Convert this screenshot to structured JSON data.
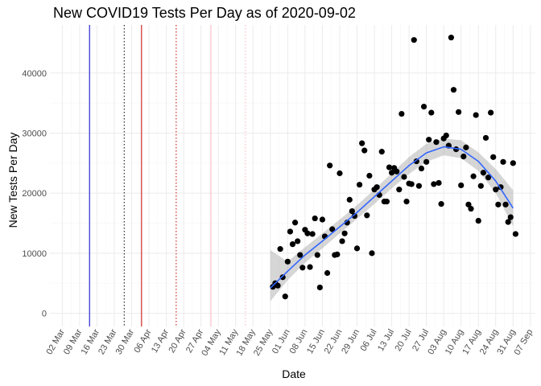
{
  "chart_data": {
    "type": "scatter",
    "title": "New COVID19 Tests Per Day as of 2020-09-02",
    "xlabel": "Date",
    "ylabel": "New Tests Per Day",
    "xlim": [
      "2020-02-26",
      "2020-09-09"
    ],
    "ylim": [
      -2200,
      48000
    ],
    "grid": true,
    "x_ticks": [
      "2020-03-02",
      "2020-03-09",
      "2020-03-16",
      "2020-03-23",
      "2020-03-30",
      "2020-04-06",
      "2020-04-13",
      "2020-04-20",
      "2020-04-27",
      "2020-05-04",
      "2020-05-11",
      "2020-05-18",
      "2020-05-25",
      "2020-06-01",
      "2020-06-08",
      "2020-06-15",
      "2020-06-22",
      "2020-06-29",
      "2020-07-06",
      "2020-07-13",
      "2020-07-20",
      "2020-07-27",
      "2020-08-03",
      "2020-08-10",
      "2020-08-17",
      "2020-08-24",
      "2020-08-31",
      "2020-09-07"
    ],
    "x_tick_labels": [
      "02 Mar",
      "09 Mar",
      "16 Mar",
      "23 Mar",
      "30 Mar",
      "06 Apr",
      "13 Apr",
      "20 Apr",
      "27 Apr",
      "04 May",
      "11 May",
      "18 May",
      "25 May",
      "01 Jun",
      "08 Jun",
      "15 Jun",
      "22 Jun",
      "29 Jun",
      "06 Jul",
      "13 Jul",
      "20 Jul",
      "27 Jul",
      "03 Aug",
      "10 Aug",
      "17 Aug",
      "24 Aug",
      "31 Aug",
      "07 Sep"
    ],
    "y_ticks": [
      0,
      10000,
      20000,
      30000,
      40000
    ],
    "y_tick_labels": [
      "0",
      "10000",
      "20000",
      "30000",
      "40000"
    ],
    "reference_lines": [
      {
        "date": "2020-03-13",
        "color": "#0000cc",
        "style": "solid"
      },
      {
        "date": "2020-03-27",
        "color": "#000000",
        "style": "dotted"
      },
      {
        "date": "2020-04-03",
        "color": "#cc0000",
        "style": "solid"
      },
      {
        "date": "2020-04-17",
        "color": "#cc0000",
        "style": "dotted"
      },
      {
        "date": "2020-05-01",
        "color": "#ffb6c1",
        "style": "solid"
      },
      {
        "date": "2020-05-15",
        "color": "#ffb6c1",
        "style": "dotted"
      }
    ],
    "points": [
      {
        "x": "2020-05-26",
        "y": 4400
      },
      {
        "x": "2020-05-27",
        "y": 5000
      },
      {
        "x": "2020-05-28",
        "y": 4600
      },
      {
        "x": "2020-05-29",
        "y": 10700
      },
      {
        "x": "2020-05-30",
        "y": 6000
      },
      {
        "x": "2020-05-31",
        "y": 2800
      },
      {
        "x": "2020-06-01",
        "y": 8600
      },
      {
        "x": "2020-06-02",
        "y": 13600
      },
      {
        "x": "2020-06-03",
        "y": 11500
      },
      {
        "x": "2020-06-04",
        "y": 15100
      },
      {
        "x": "2020-06-05",
        "y": 12000
      },
      {
        "x": "2020-06-06",
        "y": 9700
      },
      {
        "x": "2020-06-07",
        "y": 7600
      },
      {
        "x": "2020-06-08",
        "y": 13900
      },
      {
        "x": "2020-06-09",
        "y": 13300
      },
      {
        "x": "2020-06-10",
        "y": 7700
      },
      {
        "x": "2020-06-11",
        "y": 13200
      },
      {
        "x": "2020-06-12",
        "y": 15800
      },
      {
        "x": "2020-06-13",
        "y": 9700
      },
      {
        "x": "2020-06-14",
        "y": 4300
      },
      {
        "x": "2020-06-15",
        "y": 15600
      },
      {
        "x": "2020-06-16",
        "y": 12800
      },
      {
        "x": "2020-06-17",
        "y": 6700
      },
      {
        "x": "2020-06-18",
        "y": 24600
      },
      {
        "x": "2020-06-19",
        "y": 14000
      },
      {
        "x": "2020-06-20",
        "y": 9700
      },
      {
        "x": "2020-06-21",
        "y": 9800
      },
      {
        "x": "2020-06-22",
        "y": 23300
      },
      {
        "x": "2020-06-23",
        "y": 12000
      },
      {
        "x": "2020-06-24",
        "y": 13300
      },
      {
        "x": "2020-06-25",
        "y": 15100
      },
      {
        "x": "2020-06-26",
        "y": 18900
      },
      {
        "x": "2020-06-27",
        "y": 17000
      },
      {
        "x": "2020-06-28",
        "y": 16200
      },
      {
        "x": "2020-06-29",
        "y": 10800
      },
      {
        "x": "2020-06-30",
        "y": 21400
      },
      {
        "x": "2020-07-01",
        "y": 28300
      },
      {
        "x": "2020-07-02",
        "y": 27100
      },
      {
        "x": "2020-07-03",
        "y": 16300
      },
      {
        "x": "2020-07-04",
        "y": 22900
      },
      {
        "x": "2020-07-05",
        "y": 10000
      },
      {
        "x": "2020-07-06",
        "y": 20600
      },
      {
        "x": "2020-07-07",
        "y": 21000
      },
      {
        "x": "2020-07-08",
        "y": 19700
      },
      {
        "x": "2020-07-09",
        "y": 26900
      },
      {
        "x": "2020-07-10",
        "y": 18600
      },
      {
        "x": "2020-07-11",
        "y": 18600
      },
      {
        "x": "2020-07-12",
        "y": 24300
      },
      {
        "x": "2020-07-13",
        "y": 23400
      },
      {
        "x": "2020-07-14",
        "y": 24200
      },
      {
        "x": "2020-07-15",
        "y": 23600
      },
      {
        "x": "2020-07-16",
        "y": 20600
      },
      {
        "x": "2020-07-17",
        "y": 33200
      },
      {
        "x": "2020-07-18",
        "y": 22700
      },
      {
        "x": "2020-07-19",
        "y": 18600
      },
      {
        "x": "2020-07-20",
        "y": 21600
      },
      {
        "x": "2020-07-21",
        "y": 21500
      },
      {
        "x": "2020-07-22",
        "y": 45500
      },
      {
        "x": "2020-07-23",
        "y": 25300
      },
      {
        "x": "2020-07-24",
        "y": 21200
      },
      {
        "x": "2020-07-25",
        "y": 24100
      },
      {
        "x": "2020-07-26",
        "y": 34400
      },
      {
        "x": "2020-07-27",
        "y": 25200
      },
      {
        "x": "2020-07-28",
        "y": 28900
      },
      {
        "x": "2020-07-29",
        "y": 33400
      },
      {
        "x": "2020-07-30",
        "y": 21500
      },
      {
        "x": "2020-07-31",
        "y": 28500
      },
      {
        "x": "2020-08-01",
        "y": 21700
      },
      {
        "x": "2020-08-02",
        "y": 18200
      },
      {
        "x": "2020-08-03",
        "y": 29100
      },
      {
        "x": "2020-08-04",
        "y": 29600
      },
      {
        "x": "2020-08-05",
        "y": 27900
      },
      {
        "x": "2020-08-06",
        "y": 45900
      },
      {
        "x": "2020-08-07",
        "y": 37200
      },
      {
        "x": "2020-08-08",
        "y": 27300
      },
      {
        "x": "2020-08-09",
        "y": 33500
      },
      {
        "x": "2020-08-10",
        "y": 21300
      },
      {
        "x": "2020-08-11",
        "y": 26100
      },
      {
        "x": "2020-08-12",
        "y": 27600
      },
      {
        "x": "2020-08-13",
        "y": 18100
      },
      {
        "x": "2020-08-14",
        "y": 17400
      },
      {
        "x": "2020-08-15",
        "y": 22800
      },
      {
        "x": "2020-08-16",
        "y": 33000
      },
      {
        "x": "2020-08-17",
        "y": 15400
      },
      {
        "x": "2020-08-18",
        "y": 21200
      },
      {
        "x": "2020-08-19",
        "y": 23400
      },
      {
        "x": "2020-08-20",
        "y": 29200
      },
      {
        "x": "2020-08-21",
        "y": 22600
      },
      {
        "x": "2020-08-22",
        "y": 33400
      },
      {
        "x": "2020-08-23",
        "y": 26000
      },
      {
        "x": "2020-08-24",
        "y": 20600
      },
      {
        "x": "2020-08-25",
        "y": 18100
      },
      {
        "x": "2020-08-26",
        "y": 21000
      },
      {
        "x": "2020-08-27",
        "y": 25200
      },
      {
        "x": "2020-08-28",
        "y": 18100
      },
      {
        "x": "2020-08-29",
        "y": 15200
      },
      {
        "x": "2020-08-30",
        "y": 16000
      },
      {
        "x": "2020-08-31",
        "y": 25000
      },
      {
        "x": "2020-09-01",
        "y": 13200
      }
    ],
    "smooth": [
      {
        "x": "2020-05-25",
        "y": 4200,
        "lo": 2000,
        "hi": 10500
      },
      {
        "x": "2020-06-01",
        "y": 7000,
        "lo": 5500,
        "hi": 8600
      },
      {
        "x": "2020-06-08",
        "y": 9700,
        "lo": 8400,
        "hi": 11000
      },
      {
        "x": "2020-06-15",
        "y": 12000,
        "lo": 10800,
        "hi": 13300
      },
      {
        "x": "2020-06-22",
        "y": 14400,
        "lo": 13300,
        "hi": 15600
      },
      {
        "x": "2020-06-29",
        "y": 16800,
        "lo": 15700,
        "hi": 18000
      },
      {
        "x": "2020-07-06",
        "y": 19400,
        "lo": 18200,
        "hi": 20600
      },
      {
        "x": "2020-07-13",
        "y": 22000,
        "lo": 20800,
        "hi": 23300
      },
      {
        "x": "2020-07-20",
        "y": 24600,
        "lo": 23200,
        "hi": 26000
      },
      {
        "x": "2020-07-27",
        "y": 26700,
        "lo": 25200,
        "hi": 28200
      },
      {
        "x": "2020-08-03",
        "y": 27700,
        "lo": 26300,
        "hi": 29100
      },
      {
        "x": "2020-08-10",
        "y": 27300,
        "lo": 25800,
        "hi": 28800
      },
      {
        "x": "2020-08-17",
        "y": 25300,
        "lo": 23700,
        "hi": 26800
      },
      {
        "x": "2020-08-24",
        "y": 22000,
        "lo": 20000,
        "hi": 24000
      },
      {
        "x": "2020-08-31",
        "y": 17500,
        "lo": 14500,
        "hi": 20500
      }
    ],
    "colors": {
      "points": "#000000",
      "smooth_line": "#3366ff",
      "ribbon": "#999999",
      "grid_major": "#ebebeb",
      "grid_minor": "#f5f5f5"
    }
  }
}
